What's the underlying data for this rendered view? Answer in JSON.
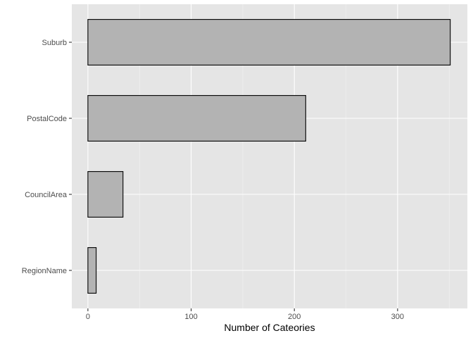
{
  "chart_data": {
    "type": "bar",
    "orientation": "horizontal",
    "categories": [
      "Suburb",
      "PostalCode",
      "CouncilArea",
      "RegionName"
    ],
    "values": [
      351,
      211,
      34,
      8
    ],
    "title": "",
    "xlabel": "Number of Cateories",
    "ylabel": "",
    "xlim": [
      -15.6,
      367.6
    ],
    "x_ticks": [
      0,
      100,
      200,
      300
    ],
    "x_tick_labels": [
      "0",
      "100",
      "200",
      "300"
    ],
    "grid": true,
    "legend": "none"
  },
  "colors": {
    "panel_background": "#e5e5e5",
    "grid_major": "#ffffff",
    "grid_minor": "#f2f2f2",
    "bar_fill": "#b3b3b3",
    "bar_stroke": "#000000",
    "tick_color": "#333333"
  }
}
